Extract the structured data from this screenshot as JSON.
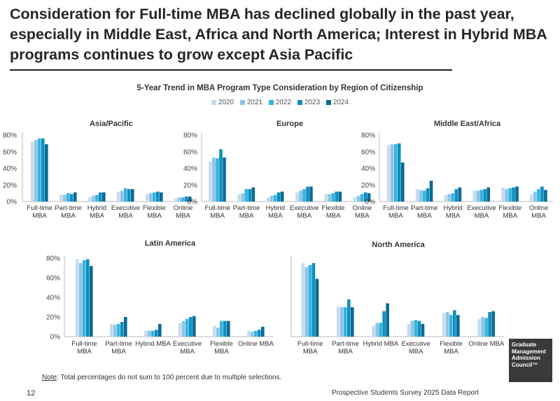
{
  "title": "Consideration for Full-time MBA has declined globally in the past year, especially in Middle East, Africa and North America; Interest in Hybrid MBA programs continues to grow except Asia Pacific",
  "subtitle": "5-Year Trend in MBA Program Type Consideration by Region of Citizenship",
  "legend": [
    {
      "label": "2020",
      "color": "#c5dcef"
    },
    {
      "label": "2021",
      "color": "#8fc3e6"
    },
    {
      "label": "2022",
      "color": "#33b5e0"
    },
    {
      "label": "2023",
      "color": "#0e8fc0"
    },
    {
      "label": "2024",
      "color": "#0a6a96"
    }
  ],
  "chart_data": [
    {
      "type": "bar",
      "title": "Asia/Pacific",
      "categories": [
        "Full-time MBA",
        "Part-time MBA",
        "Hybrid MBA",
        "Executive MBA",
        "Flexible MBA",
        "Online MBA"
      ],
      "ylim": [
        0,
        80
      ],
      "yticks": [
        "0%",
        "20%",
        "40%",
        "60%",
        "80%"
      ],
      "series": [
        {
          "name": "2020",
          "values": [
            72,
            8,
            5,
            12,
            9,
            4
          ]
        },
        {
          "name": "2021",
          "values": [
            74,
            8,
            7,
            13,
            10,
            5
          ]
        },
        {
          "name": "2022",
          "values": [
            76,
            10,
            8,
            16,
            11,
            5
          ]
        },
        {
          "name": "2023",
          "values": [
            76,
            9,
            11,
            15,
            12,
            6
          ]
        },
        {
          "name": "2024",
          "values": [
            69,
            11,
            11,
            15,
            11,
            6
          ]
        }
      ]
    },
    {
      "type": "bar",
      "title": "Europe",
      "categories": [
        "Full-time MBA",
        "Part-time MBA",
        "Hybrid MBA",
        "Executive MBA",
        "Flexible MBA",
        "Online MBA"
      ],
      "ylim": [
        0,
        80
      ],
      "yticks": [
        "0%",
        "20%",
        "40%",
        "60%",
        "80%"
      ],
      "series": [
        {
          "name": "2020",
          "values": [
            48,
            9,
            5,
            11,
            9,
            5
          ]
        },
        {
          "name": "2021",
          "values": [
            53,
            10,
            7,
            13,
            9,
            7
          ]
        },
        {
          "name": "2022",
          "values": [
            52,
            15,
            8,
            15,
            10,
            9
          ]
        },
        {
          "name": "2023",
          "values": [
            63,
            15,
            11,
            18,
            12,
            11
          ]
        },
        {
          "name": "2024",
          "values": [
            53,
            17,
            12,
            18,
            12,
            10
          ]
        }
      ]
    },
    {
      "type": "bar",
      "title": "Middle East/Africa",
      "categories": [
        "Full-time MBA",
        "Part-time MBA",
        "Hybrid MBA",
        "Executive MBA",
        "Flexible MBA",
        "Online MBA"
      ],
      "ylim": [
        0,
        80
      ],
      "yticks": [
        "0%",
        "20%",
        "40%",
        "60%",
        "80%"
      ],
      "series": [
        {
          "name": "2020",
          "values": [
            68,
            15,
            8,
            13,
            17,
            9
          ]
        },
        {
          "name": "2021",
          "values": [
            69,
            14,
            9,
            13,
            15,
            12
          ]
        },
        {
          "name": "2022",
          "values": [
            69,
            13,
            10,
            14,
            16,
            15
          ]
        },
        {
          "name": "2023",
          "values": [
            70,
            16,
            15,
            15,
            17,
            18
          ]
        },
        {
          "name": "2024",
          "values": [
            47,
            25,
            17,
            17,
            18,
            14
          ]
        }
      ]
    },
    {
      "type": "bar",
      "title": "Latin America",
      "categories": [
        "Full-time MBA",
        "Part-time MBA",
        "Hybrid MBA",
        "Executive MBA",
        "Flexible MBA",
        "Online MBA"
      ],
      "ylim": [
        0,
        80
      ],
      "yticks": [
        "0%",
        "20%",
        "40%",
        "60%",
        "80%"
      ],
      "series": [
        {
          "name": "2020",
          "values": [
            79,
            13,
            6,
            14,
            11,
            6
          ]
        },
        {
          "name": "2021",
          "values": [
            75,
            12,
            6,
            16,
            9,
            5
          ]
        },
        {
          "name": "2022",
          "values": [
            78,
            13,
            6,
            18,
            16,
            6
          ]
        },
        {
          "name": "2023",
          "values": [
            79,
            15,
            7,
            20,
            16,
            7
          ]
        },
        {
          "name": "2024",
          "values": [
            72,
            20,
            13,
            21,
            16,
            10
          ]
        }
      ]
    },
    {
      "type": "bar",
      "title": "North America",
      "categories": [
        "Full-time MBA",
        "Part-time MBA",
        "Hybrid MBA",
        "Executive MBA",
        "Flexible MBA",
        "Online MBA"
      ],
      "ylim": [
        0,
        80
      ],
      "yticks": [],
      "series": [
        {
          "name": "2020",
          "values": [
            75,
            31,
            11,
            13,
            24,
            18
          ]
        },
        {
          "name": "2021",
          "values": [
            71,
            30,
            14,
            16,
            25,
            20
          ]
        },
        {
          "name": "2022",
          "values": [
            73,
            30,
            14,
            17,
            22,
            19
          ]
        },
        {
          "name": "2023",
          "values": [
            75,
            38,
            26,
            16,
            27,
            25
          ]
        },
        {
          "name": "2024",
          "values": [
            59,
            30,
            34,
            13,
            22,
            26
          ]
        }
      ]
    }
  ],
  "note_label": "Note",
  "note_text": ": Total percentages do not sum to 100 percent due to multiple selections.",
  "page_number": "12",
  "footer_report": "Prospective Students Survey 2025 Data Report",
  "logo_lines": [
    "Graduate",
    "Management",
    "Admission",
    "Council™"
  ]
}
